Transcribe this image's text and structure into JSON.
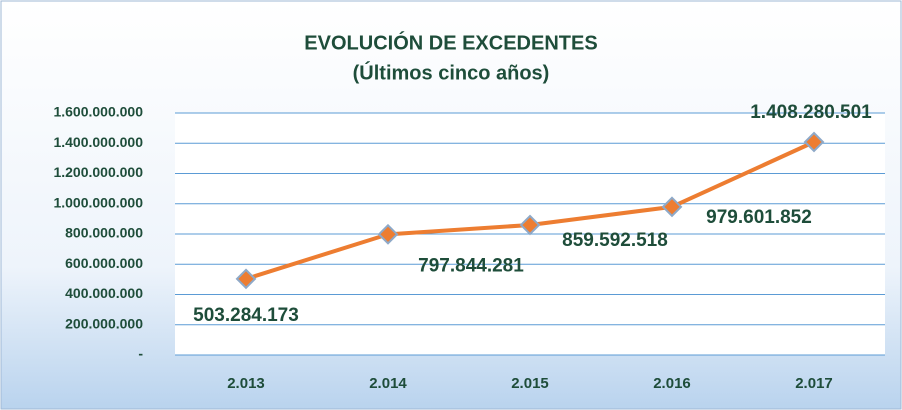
{
  "chart_data": {
    "type": "line",
    "title": "EVOLUCIÓN DE EXCEDENTES",
    "subtitle": "(Últimos cinco años)",
    "categories": [
      "2.013",
      "2.014",
      "2.015",
      "2.016",
      "2.017"
    ],
    "series": [
      {
        "name": "Excedentes",
        "color": "#ed7d31",
        "values": [
          503284173,
          797844281,
          859592518,
          979601852,
          1408280501
        ],
        "value_labels": [
          "503.284.173",
          "797.844.281",
          "859.592.518",
          "979.601.852",
          "1.408.280.501"
        ]
      }
    ],
    "ylim": [
      0,
      1600000000
    ],
    "yticks": [
      {
        "value": 0,
        "label": "-"
      },
      {
        "value": 200000000,
        "label": "200.000.000"
      },
      {
        "value": 400000000,
        "label": "400.000.000"
      },
      {
        "value": 600000000,
        "label": "600.000.000"
      },
      {
        "value": 800000000,
        "label": "800.000.000"
      },
      {
        "value": 1000000000,
        "label": "1.000.000.000"
      },
      {
        "value": 1200000000,
        "label": "1.200.000.000"
      },
      {
        "value": 1400000000,
        "label": "1.400.000.000"
      },
      {
        "value": 1600000000,
        "label": "1.600.000.000"
      }
    ],
    "grid": true
  }
}
